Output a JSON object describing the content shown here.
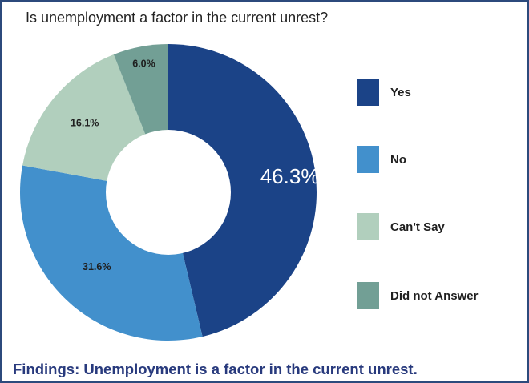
{
  "chart_data": {
    "type": "pie",
    "title": "Is unemployment a factor in the current unrest?",
    "donut": true,
    "legend_position": "right",
    "slices": [
      {
        "label": "Yes",
        "value": 46.3,
        "value_label": "46.3%",
        "color": "#1b4387",
        "label_color": "#ffffff"
      },
      {
        "label": "No",
        "value": 31.6,
        "value_label": "31.6%",
        "color": "#4290cc",
        "label_color": "#1f1f1f"
      },
      {
        "label": "Can't Say",
        "value": 16.1,
        "value_label": "16.1%",
        "color": "#b1cfbd",
        "label_color": "#1f1f1f"
      },
      {
        "label": "Did not Answer",
        "value": 6.0,
        "value_label": "6.0%",
        "color": "#729f95",
        "label_color": "#1f1f1f"
      }
    ]
  },
  "footer": {
    "findings": "Findings: Unemployment is a factor in the current unrest."
  }
}
